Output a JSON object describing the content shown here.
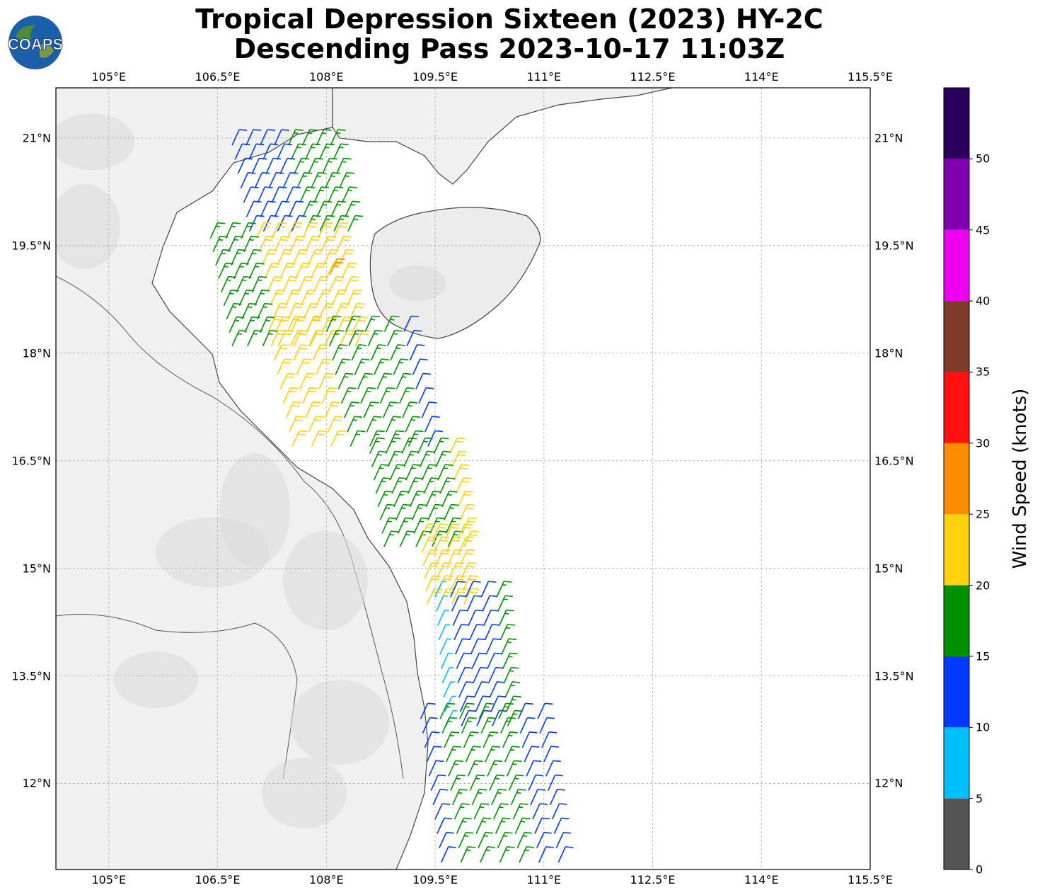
{
  "header": {
    "title_line1": "Tropical Depression Sixteen (2023) HY-2C",
    "title_line2": "Descending Pass 2023-10-17 11:03Z",
    "logo_text": "COAPS"
  },
  "map": {
    "lon_labels": [
      "105°E",
      "106.5°E",
      "108°E",
      "109.5°E",
      "111°E",
      "112.5°E",
      "114°E",
      "115.5°E"
    ],
    "lat_labels": [
      "21°N",
      "19.5°N",
      "18°N",
      "16.5°N",
      "15°N",
      "13.5°N",
      "12°N"
    ],
    "lon_values": [
      105,
      106.5,
      108,
      109.5,
      111,
      112.5,
      114,
      115.5
    ],
    "lat_values": [
      21,
      19.5,
      18,
      16.5,
      15,
      13.5,
      12
    ],
    "lon_range": [
      104.27,
      115.5
    ],
    "lat_range": [
      10.8,
      21.7
    ],
    "gridlines": true,
    "land_color": "#f4f4f4",
    "coastline_color": "#444444"
  },
  "colorbar": {
    "title": "Wind Speed (knots)",
    "ticks": [
      "0",
      "5",
      "10",
      "15",
      "20",
      "25",
      "30",
      "35",
      "40",
      "45",
      "50"
    ],
    "bins": [
      {
        "min": 0,
        "max": 5,
        "color": "#555555"
      },
      {
        "min": 5,
        "max": 10,
        "color": "#00bfff"
      },
      {
        "min": 10,
        "max": 15,
        "color": "#0039ff"
      },
      {
        "min": 15,
        "max": 20,
        "color": "#009000"
      },
      {
        "min": 20,
        "max": 25,
        "color": "#ffd10f"
      },
      {
        "min": 25,
        "max": 30,
        "color": "#ff8c00"
      },
      {
        "min": 30,
        "max": 35,
        "color": "#ff1010"
      },
      {
        "min": 35,
        "max": 40,
        "color": "#803c2a"
      },
      {
        "min": 40,
        "max": 45,
        "color": "#f000f0"
      },
      {
        "min": 45,
        "max": 50,
        "color": "#8000b0"
      },
      {
        "min": 50,
        "max": 55,
        "color": "#2a005c"
      }
    ]
  },
  "wind_barbs": [
    {
      "lat_start": 20.9,
      "lat_end": 19.7,
      "lon_start": 106.7,
      "lon_end": 108.3,
      "rows": 7,
      "cols": 8,
      "speeds": [
        13,
        13,
        13,
        13,
        17,
        17,
        17,
        17
      ]
    },
    {
      "lat_start": 19.6,
      "lat_end": 18.1,
      "lon_start": 106.4,
      "lon_end": 108.4,
      "rows": 9,
      "cols": 9,
      "speeds": [
        17,
        17,
        17,
        22,
        22,
        22,
        22,
        22,
        22
      ]
    },
    {
      "lat_start": 18.3,
      "lat_end": 16.7,
      "lon_start": 107.2,
      "lon_end": 109.4,
      "rows": 9,
      "cols": 8,
      "speeds": [
        22,
        22,
        22,
        17,
        17,
        17,
        17,
        13
      ]
    },
    {
      "lat_start": 16.6,
      "lat_end": 15.3,
      "lon_start": 108.6,
      "lon_end": 109.9,
      "rows": 8,
      "cols": 6,
      "speeds": [
        17,
        17,
        17,
        17,
        17,
        22
      ]
    },
    {
      "lat_start": 15.4,
      "lat_end": 14.5,
      "lon_start": 109.3,
      "lon_end": 109.9,
      "rows": 6,
      "cols": 4,
      "speeds": [
        22,
        22,
        22,
        22
      ]
    },
    {
      "lat_start": 14.6,
      "lat_end": 12.8,
      "lon_start": 109.5,
      "lon_end": 110.5,
      "rows": 10,
      "cols": 5,
      "speeds": [
        8,
        13,
        13,
        13,
        17
      ]
    },
    {
      "lat_start": 12.9,
      "lat_end": 10.9,
      "lon_start": 109.3,
      "lon_end": 111.2,
      "rows": 11,
      "cols": 7,
      "speeds": [
        13,
        17,
        17,
        17,
        17,
        13,
        13
      ]
    }
  ],
  "special_barb": {
    "lat": 19.1,
    "lon": 108.05,
    "speed": 27
  }
}
